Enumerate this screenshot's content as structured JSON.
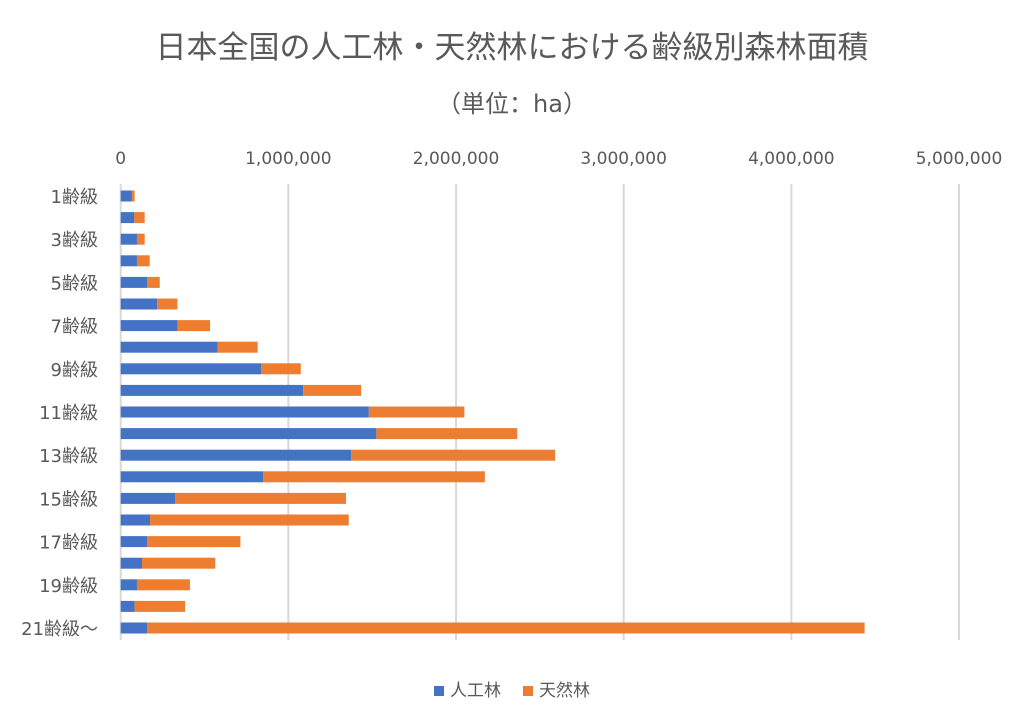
{
  "chart_data": {
    "type": "bar",
    "orientation": "horizontal",
    "stacked": true,
    "title": "日本全国の人工林・天然林における齢級別森林面積",
    "subtitle": "（単位：ha）",
    "categories": [
      "1齢級",
      "2齢級",
      "3齢級",
      "4齢級",
      "5齢級",
      "6齢級",
      "7齢級",
      "8齢級",
      "9齢級",
      "10齢級",
      "11齢級",
      "12齢級",
      "13齢級",
      "14齢級",
      "15齢級",
      "16齢級",
      "17齢級",
      "18齢級",
      "19齢級",
      "20齢級",
      "21齢級～"
    ],
    "category_labels_shown": [
      "1齢級",
      "",
      "3齢級",
      "",
      "5齢級",
      "",
      "7齢級",
      "",
      "9齢級",
      "",
      "11齢級",
      "",
      "13齢級",
      "",
      "15齢級",
      "",
      "17齢級",
      "",
      "19齢級",
      "",
      "21齢級～"
    ],
    "series": [
      {
        "name": "人工林",
        "color": "#4472C4",
        "values": [
          67000,
          81000,
          97000,
          97000,
          157000,
          217000,
          340000,
          579000,
          837000,
          1088000,
          1480000,
          1525000,
          1374000,
          849000,
          324000,
          175000,
          157000,
          127000,
          97000,
          83000,
          157000
        ]
      },
      {
        "name": "天然林",
        "color": "#ED7D31",
        "values": [
          16000,
          62000,
          46000,
          76000,
          76000,
          121000,
          193000,
          238000,
          237000,
          346000,
          570000,
          840000,
          1217000,
          1323000,
          1020000,
          1185000,
          557000,
          437000,
          316000,
          301000,
          4280000
        ]
      }
    ],
    "xlim": [
      0,
      5000000
    ],
    "x_ticks": [
      "0",
      "1,000,000",
      "2,000,000",
      "3,000,000",
      "4,000,000",
      "5,000,000"
    ],
    "x_axis_position": "top",
    "grid": true,
    "legend_position": "bottom"
  }
}
